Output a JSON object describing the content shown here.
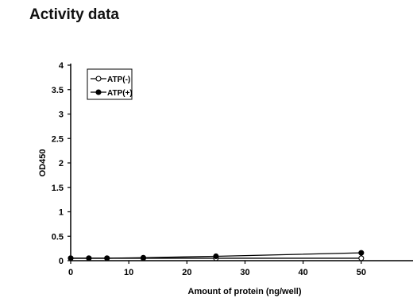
{
  "page": {
    "title": "Activity data"
  },
  "chart_data": {
    "type": "line",
    "title": "",
    "xlabel": "Amount of protein (ng/well)",
    "ylabel": "OD450",
    "xlim": [
      0,
      60
    ],
    "ylim": [
      0,
      4
    ],
    "xticks": [
      0,
      10,
      20,
      30,
      40,
      50
    ],
    "yticks": [
      0,
      0.5,
      1,
      1.5,
      2,
      2.5,
      3,
      3.5,
      4
    ],
    "ytick_labels": [
      "0",
      "0.5",
      "1",
      "1.5",
      "2",
      "2.5",
      "3",
      "3.5",
      "4"
    ],
    "grid": false,
    "legend_position": "top-left",
    "series": [
      {
        "name": "ATP(-)",
        "marker": "open-circle",
        "color": "#000000",
        "x": [
          0,
          3.125,
          6.25,
          12.5,
          25,
          50
        ],
        "y": [
          0.05,
          0.05,
          0.05,
          0.05,
          0.05,
          0.05
        ]
      },
      {
        "name": "ATP(+)",
        "marker": "filled-circle",
        "color": "#000000",
        "x": [
          0,
          3.125,
          6.25,
          12.5,
          25,
          50
        ],
        "y": [
          0.05,
          0.05,
          0.05,
          0.06,
          0.09,
          0.16
        ]
      }
    ]
  }
}
